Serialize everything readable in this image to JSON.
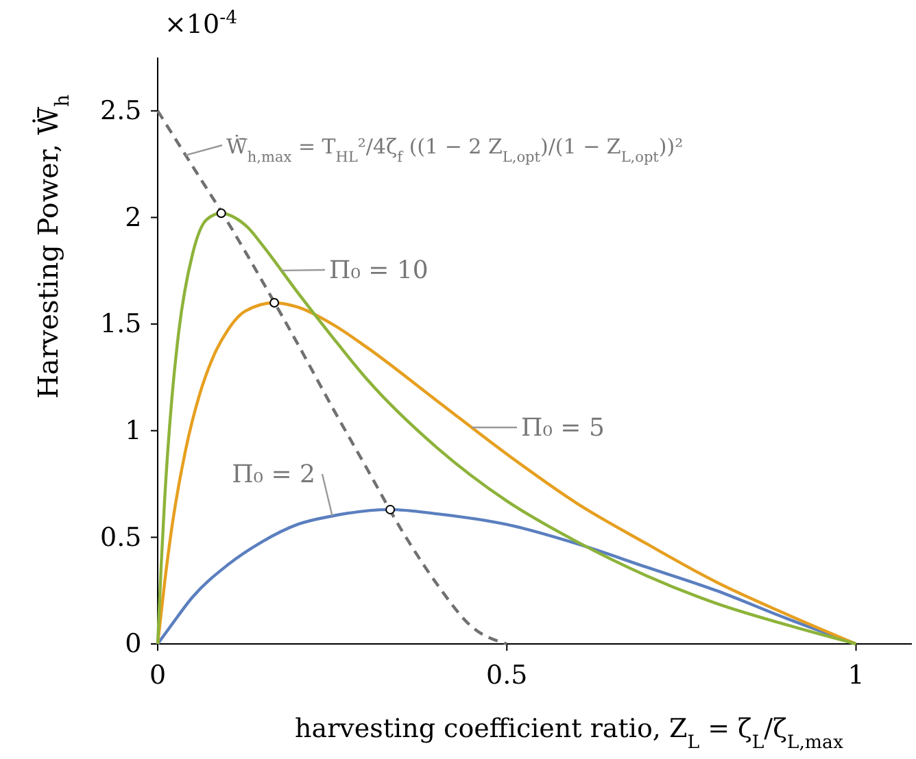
{
  "chart_data": {
    "type": "line",
    "xlabel": "harvesting coefficient ratio, Z$_{L}$ = ζ$_{L}$/ζ$_{L,max}$",
    "ylabel": "Harvesting Power, Ẇ̄$_{h}$",
    "xlim": [
      0,
      1.08
    ],
    "ylim": [
      0,
      2.75
    ],
    "xticks": [
      0,
      0.5,
      1
    ],
    "yticks": [
      0,
      0.5,
      1,
      1.5,
      2,
      2.5
    ],
    "grid": false,
    "annotations": [
      "×10$^{-4}$"
    ],
    "series": [
      {
        "name": "Π₀ = 2",
        "color": "#5b7fbf",
        "x": [
          0,
          0.02,
          0.05,
          0.1,
          0.15,
          0.2,
          0.25,
          0.333,
          0.4,
          0.5,
          0.6,
          0.7,
          0.8,
          0.9,
          1
        ],
        "values": [
          0,
          0.09,
          0.22,
          0.37,
          0.48,
          0.56,
          0.6,
          0.63,
          0.61,
          0.56,
          0.47,
          0.36,
          0.25,
          0.12,
          0
        ]
      },
      {
        "name": "Π₀ = 5",
        "color": "#e69f1f",
        "x": [
          0,
          0.01,
          0.02,
          0.04,
          0.06,
          0.08,
          0.1,
          0.125,
          0.167,
          0.2,
          0.25,
          0.3,
          0.4,
          0.5,
          0.6,
          0.7,
          0.8,
          0.9,
          1
        ],
        "values": [
          0,
          0.29,
          0.54,
          0.91,
          1.17,
          1.35,
          1.47,
          1.56,
          1.6,
          1.58,
          1.5,
          1.39,
          1.14,
          0.89,
          0.66,
          0.47,
          0.29,
          0.14,
          0
        ]
      },
      {
        "name": "Π₀ = 10",
        "color": "#8db33a",
        "x": [
          0,
          0.005,
          0.01,
          0.02,
          0.03,
          0.05,
          0.07,
          0.091,
          0.11,
          0.13,
          0.15,
          0.2,
          0.25,
          0.3,
          0.4,
          0.5,
          0.6,
          0.7,
          0.8,
          0.9,
          1
        ],
        "values": [
          0,
          0.37,
          0.68,
          1.14,
          1.46,
          1.83,
          1.99,
          2.02,
          2,
          1.95,
          1.87,
          1.65,
          1.44,
          1.24,
          0.92,
          0.67,
          0.48,
          0.32,
          0.19,
          0.09,
          0
        ]
      },
      {
        "name": "Ẇ̄$_{h,max}$ = T$_{HL}$²/4ζ$_{f}$ ((1 − 2 Z$_{L,opt}$)/(1 − Z$_{L,opt}$))²",
        "color": "#707070",
        "line_style": "dashed",
        "marker": "none",
        "x": [
          0,
          0.05,
          0.1,
          0.15,
          0.2,
          0.25,
          0.3,
          0.35,
          0.4,
          0.45,
          0.5
        ],
        "values": [
          2.5,
          2.24,
          1.98,
          1.7,
          1.41,
          1.11,
          0.82,
          0.53,
          0.28,
          0.08,
          0
        ]
      },
      {
        "type": "scatter",
        "color": "#ffffff",
        "marker": "circle",
        "x": [
          0.091,
          0.167,
          0.333
        ],
        "values": [
          2.02,
          1.6,
          0.63
        ]
      }
    ]
  }
}
